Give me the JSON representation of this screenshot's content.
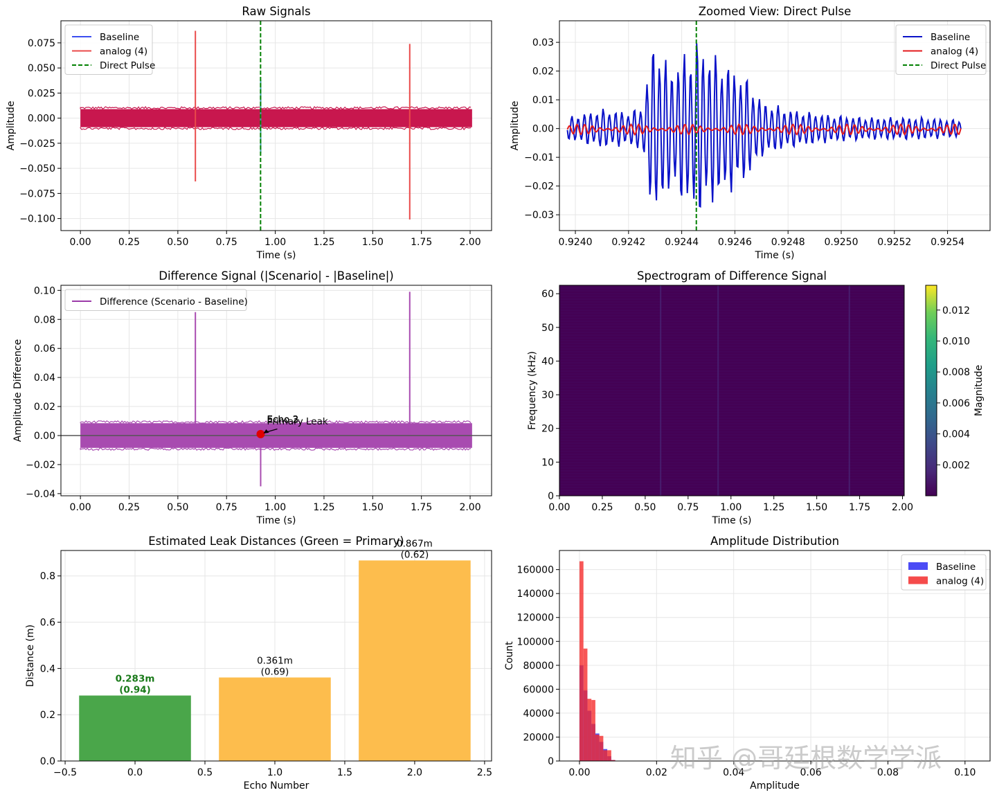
{
  "watermark": "知乎 @哥廷根数学学派",
  "chart_data": [
    {
      "id": "raw",
      "type": "line",
      "title": "Raw Signals",
      "xlabel": "Time (s)",
      "ylabel": "Amplitude",
      "xlim": [
        -0.1,
        2.11
      ],
      "ylim": [
        -0.112,
        0.097
      ],
      "xticks": [
        0.0,
        0.25,
        0.5,
        0.75,
        1.0,
        1.25,
        1.5,
        1.75,
        2.0
      ],
      "xtick_labels": [
        "0.00",
        "0.25",
        "0.50",
        "0.75",
        "1.00",
        "1.25",
        "1.50",
        "1.75",
        "2.00"
      ],
      "yticks": [
        -0.1,
        -0.075,
        -0.05,
        -0.025,
        0.0,
        0.025,
        0.05,
        0.075
      ],
      "ytick_labels": [
        "−0.100",
        "−0.075",
        "−0.050",
        "−0.025",
        "0.000",
        "0.025",
        "0.050",
        "0.075"
      ],
      "grid": true,
      "legend": "top-left",
      "legend_entries": [
        {
          "name": "Baseline",
          "color": "#3b4cf0",
          "style": "solid"
        },
        {
          "name": "analog (4)",
          "color": "#ea4a4a",
          "style": "solid"
        },
        {
          "name": "Direct Pulse",
          "color": "#008000",
          "style": "dashed"
        }
      ],
      "noise_band": {
        "x": [
          0.0,
          2.01
        ],
        "y": [
          -0.009,
          0.009
        ],
        "color": "#c8174e"
      },
      "spikes": [
        {
          "x": 0.59,
          "ymin": -0.063,
          "ymax": 0.087,
          "color": "#ea4a4a"
        },
        {
          "x": 1.69,
          "ymin": -0.101,
          "ymax": 0.074,
          "color": "#ea4a4a"
        },
        {
          "x": 0.925,
          "ymin": -0.035,
          "ymax": 0.038,
          "color": "#3aa0a0"
        }
      ],
      "vline": {
        "x": 0.9245,
        "color": "#008000"
      }
    },
    {
      "id": "zoom",
      "type": "line",
      "title": "Zoomed View: Direct Pulse",
      "xlabel": "Time (s)",
      "ylabel": "Amplitude",
      "xlim": [
        0.92394,
        0.92556
      ],
      "ylim": [
        -0.0355,
        0.0375
      ],
      "xticks": [
        0.924,
        0.9242,
        0.9244,
        0.9246,
        0.9248,
        0.925,
        0.9252,
        0.9254
      ],
      "xtick_labels": [
        "0.9240",
        "0.9242",
        "0.9244",
        "0.9246",
        "0.9248",
        "0.9250",
        "0.9252",
        "0.9254"
      ],
      "yticks": [
        -0.03,
        -0.02,
        -0.01,
        0.0,
        0.01,
        0.02,
        0.03
      ],
      "ytick_labels": [
        "−0.03",
        "−0.02",
        "−0.01",
        "0.00",
        "0.01",
        "0.02",
        "0.03"
      ],
      "grid": true,
      "legend": "top-right",
      "legend_entries": [
        {
          "name": "Baseline",
          "color": "#0a12c8",
          "style": "solid"
        },
        {
          "name": "analog (4)",
          "color": "#e31a1c",
          "style": "solid"
        },
        {
          "name": "Direct Pulse",
          "color": "#008000",
          "style": "dashed"
        }
      ],
      "series": [
        {
          "name": "Baseline",
          "color": "#0a12c8",
          "x_start": 0.92397,
          "x_end": 0.92545,
          "envelope": [
            [
              0.92397,
              0.004
            ],
            [
              0.9241,
              0.007
            ],
            [
              0.9242,
              0.006
            ],
            [
              0.92425,
              0.008
            ],
            [
              0.9243,
              0.034
            ],
            [
              0.92435,
              0.022
            ],
            [
              0.9244,
              0.026
            ],
            [
              0.92446,
              0.032
            ],
            [
              0.9245,
              0.028
            ],
            [
              0.92458,
              0.023
            ],
            [
              0.92465,
              0.018
            ],
            [
              0.9247,
              0.01
            ],
            [
              0.9248,
              0.007
            ],
            [
              0.92495,
              0.005
            ],
            [
              0.9251,
              0.004
            ],
            [
              0.9253,
              0.004
            ],
            [
              0.92545,
              0.003
            ]
          ],
          "period": 2.35e-05
        },
        {
          "name": "analog (4)",
          "color": "#e31a1c",
          "x_start": 0.92397,
          "x_end": 0.92545,
          "amplitude": 0.0015,
          "period": 2.9e-05
        }
      ],
      "vline": {
        "x": 0.924455,
        "color": "#008000"
      }
    },
    {
      "id": "diff",
      "type": "line",
      "title": "Difference Signal (|Scenario| - |Baseline|)",
      "xlabel": "Time (s)",
      "ylabel": "Amplitude Difference",
      "xlim": [
        -0.1,
        2.11
      ],
      "ylim": [
        -0.0415,
        0.1035
      ],
      "xticks": [
        0.0,
        0.25,
        0.5,
        0.75,
        1.0,
        1.25,
        1.5,
        1.75,
        2.0
      ],
      "xtick_labels": [
        "0.00",
        "0.25",
        "0.50",
        "0.75",
        "1.00",
        "1.25",
        "1.50",
        "1.75",
        "2.00"
      ],
      "yticks": [
        -0.04,
        -0.02,
        0.0,
        0.02,
        0.04,
        0.06,
        0.08,
        0.1
      ],
      "ytick_labels": [
        "−0.04",
        "−0.02",
        "0.00",
        "0.02",
        "0.04",
        "0.06",
        "0.08",
        "0.10"
      ],
      "grid": true,
      "legend": "top-left",
      "legend_entries": [
        {
          "name": "Difference (Scenario - Baseline)",
          "color": "#9b3aa8",
          "style": "solid"
        }
      ],
      "noise_band": {
        "x": [
          0.0,
          2.01
        ],
        "y": [
          -0.0085,
          0.0085
        ],
        "color": "#a84bb0"
      },
      "spikes": [
        {
          "x": 0.59,
          "ymin": 0.0,
          "ymax": 0.085,
          "color": "#a84bb0"
        },
        {
          "x": 1.69,
          "ymin": 0.0,
          "ymax": 0.099,
          "color": "#a84bb0"
        },
        {
          "x": 0.925,
          "ymin": -0.035,
          "ymax": 0.0,
          "color": "#a84bb0"
        }
      ],
      "hline": {
        "y": 0.0,
        "color": "#000000"
      },
      "markers": [
        {
          "x": 0.925,
          "y": 0.001,
          "color": "#e00000"
        }
      ],
      "annotations": [
        {
          "text": "Echo 3",
          "x": 0.95,
          "y": 0.0095
        },
        {
          "text": "Echo 2",
          "x": 0.95,
          "y": 0.0093
        },
        {
          "text": "Primary Leak",
          "x": 0.95,
          "y": 0.0082
        }
      ]
    },
    {
      "id": "spec",
      "type": "heatmap",
      "title": "Spectrogram of Difference Signal",
      "xlabel": "Time (s)",
      "ylabel": "Frequency (kHz)",
      "xlim": [
        0.0,
        2.01
      ],
      "ylim": [
        0.0,
        62.5
      ],
      "xticks": [
        0.0,
        0.25,
        0.5,
        0.75,
        1.0,
        1.25,
        1.5,
        1.75,
        2.0
      ],
      "xtick_labels": [
        "0.00",
        "0.25",
        "0.50",
        "0.75",
        "1.00",
        "1.25",
        "1.50",
        "1.75",
        "2.00"
      ],
      "yticks": [
        0,
        10,
        20,
        30,
        40,
        50,
        60
      ],
      "ytick_labels": [
        "0",
        "10",
        "20",
        "30",
        "40",
        "50",
        "60"
      ],
      "colorbar": {
        "label": "Magnitude",
        "range": [
          0.0,
          0.0136
        ],
        "ticks": [
          0.002,
          0.004,
          0.006,
          0.008,
          0.01,
          0.012
        ],
        "tick_labels": [
          "0.002",
          "0.004",
          "0.006",
          "0.008",
          "0.010",
          "0.012"
        ],
        "colormap": "viridis"
      },
      "background_value": 0.0004,
      "highlight_times": [
        0.59,
        0.925,
        1.69
      ]
    },
    {
      "id": "bars",
      "type": "bar",
      "title": "Estimated Leak Distances (Green = Primary)",
      "xlabel": "Echo Number",
      "ylabel": "Distance (m)",
      "xlim": [
        -0.53,
        2.55
      ],
      "ylim": [
        0.0,
        0.91
      ],
      "xticks": [
        -0.5,
        0.0,
        0.5,
        1.0,
        1.5,
        2.0,
        2.5
      ],
      "xtick_labels": [
        "−0.5",
        "0.0",
        "0.5",
        "1.0",
        "1.5",
        "2.0",
        "2.5"
      ],
      "yticks": [
        0.0,
        0.2,
        0.4,
        0.6,
        0.8
      ],
      "ytick_labels": [
        "0.0",
        "0.2",
        "0.4",
        "0.6",
        "0.8"
      ],
      "grid": true,
      "bar_width": 0.8,
      "bars": [
        {
          "x": 0,
          "value": 0.283,
          "color": "#4aa64a",
          "label_line1": "0.283m",
          "label_line2": "(0.94)",
          "label_color": "#1a7a1a",
          "bold": true
        },
        {
          "x": 1,
          "value": 0.361,
          "color": "#fdbd4d",
          "label_line1": "0.361m",
          "label_line2": "(0.69)",
          "label_color": "#000000",
          "bold": false
        },
        {
          "x": 2,
          "value": 0.867,
          "color": "#fdbd4d",
          "label_line1": "0.867m",
          "label_line2": "(0.62)",
          "label_color": "#000000",
          "bold": false
        }
      ]
    },
    {
      "id": "hist",
      "type": "bar",
      "title": "Amplitude Distribution",
      "xlabel": "Amplitude",
      "ylabel": "Count",
      "xlim": [
        -0.0052,
        0.1065
      ],
      "ylim": [
        0,
        176000
      ],
      "xticks": [
        0.0,
        0.02,
        0.04,
        0.06,
        0.08,
        0.1
      ],
      "xtick_labels": [
        "0.00",
        "0.02",
        "0.04",
        "0.06",
        "0.08",
        "0.10"
      ],
      "yticks": [
        0,
        20000,
        40000,
        60000,
        80000,
        100000,
        120000,
        140000,
        160000
      ],
      "ytick_labels": [
        "0",
        "20000",
        "40000",
        "60000",
        "80000",
        "100000",
        "120000",
        "140000",
        "160000"
      ],
      "grid": true,
      "legend": "top-right",
      "legend_entries": [
        {
          "name": "Baseline",
          "color": "#4b4bf5"
        },
        {
          "name": "analog (4)",
          "color": "#f54b4b"
        }
      ],
      "bin_width": 0.00103,
      "series": [
        {
          "name": "Baseline",
          "color": "rgba(40,40,240,0.78)",
          "values": [
            80000,
            59000,
            42000,
            31000,
            23000,
            16000,
            10000,
            4000,
            800,
            0
          ]
        },
        {
          "name": "analog (4)",
          "color": "rgba(245,40,40,0.78)",
          "values": [
            167000,
            94000,
            52000,
            51000,
            22000,
            21000,
            9000,
            9000,
            800,
            0
          ]
        }
      ]
    }
  ]
}
